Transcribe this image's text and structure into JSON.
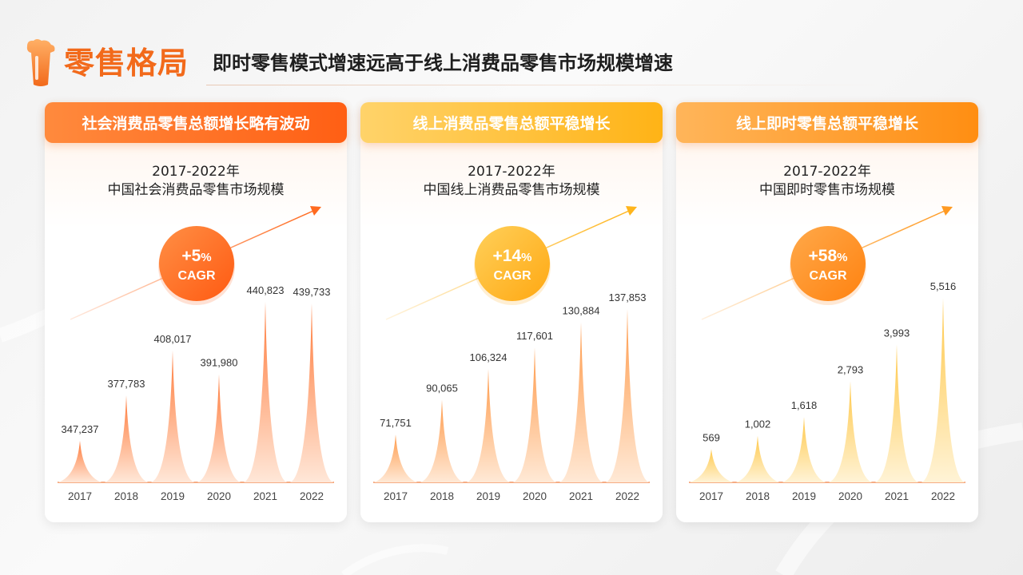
{
  "header": {
    "title": "零售格局",
    "subtitle": "即时零售模式增速远高于线上消费品零售市场规模增速"
  },
  "panels": [
    {
      "head": "社会消费品零售总额增长略有波动",
      "sub1": "2017-2022年",
      "sub2": "中国社会消费品零售市场规模",
      "cagr_value": "+5",
      "cagr_pct": "%",
      "cagr_label": "CAGR",
      "colors": {
        "head_from": "#ff8a3d",
        "head_to": "#ff5f14",
        "spike_top": "#ff7a3a",
        "spike_bottom": "#ffe7d8",
        "circle_from": "#ff8f45",
        "circle_to": "#ff5a12",
        "arrow": "#ff6a1f"
      }
    },
    {
      "head": "线上消费品零售总额平稳增长",
      "sub1": "2017-2022年",
      "sub2": "中国线上消费品零售市场规模",
      "cagr_value": "+14",
      "cagr_pct": "%",
      "cagr_label": "CAGR",
      "colors": {
        "head_from": "#ffd36a",
        "head_to": "#ffb316",
        "spike_top": "#ff9a4a",
        "spike_bottom": "#ffe9d6",
        "circle_from": "#ffd05a",
        "circle_to": "#ffa812",
        "arrow": "#ffb51c"
      }
    },
    {
      "head": "线上即时零售总额平稳增长",
      "sub1": "2017-2022年",
      "sub2": "中国即时零售市场规模",
      "cagr_value": "+58",
      "cagr_pct": "%",
      "cagr_label": "CAGR",
      "colors": {
        "head_from": "#ffb55a",
        "head_to": "#ff8e12",
        "spike_top": "#ffc84a",
        "spike_bottom": "#fff3d6",
        "circle_from": "#ffa94a",
        "circle_to": "#ff8210",
        "arrow": "#ff9a22"
      }
    }
  ],
  "chart_data": [
    {
      "type": "bar",
      "categories": [
        "2017",
        "2018",
        "2019",
        "2020",
        "2021",
        "2022"
      ],
      "values": [
        347237,
        377783,
        408017,
        391980,
        440823,
        439733
      ],
      "labels": [
        "347,237",
        "377,783",
        "408,017",
        "391,980",
        "440,823",
        "439,733"
      ],
      "title": "2017-2022年 中国社会消费品零售市场规模",
      "ylim": [
        330000,
        445000
      ]
    },
    {
      "type": "bar",
      "categories": [
        "2017",
        "2018",
        "2019",
        "2020",
        "2021",
        "2022"
      ],
      "values": [
        71751,
        90065,
        106324,
        117601,
        130884,
        137853
      ],
      "labels": [
        "71,751",
        "90,065",
        "106,324",
        "117,601",
        "130,884",
        "137,853"
      ],
      "title": "2017-2022年 中国线上消费品零售市场规模",
      "ylim": [
        55000,
        145000
      ]
    },
    {
      "type": "bar",
      "categories": [
        "2017",
        "2018",
        "2019",
        "2020",
        "2021",
        "2022"
      ],
      "values": [
        569,
        1002,
        1618,
        2793,
        3993,
        5516
      ],
      "labels": [
        "569",
        "1,002",
        "1,618",
        "2,793",
        "3,993",
        "5,516"
      ],
      "title": "2017-2022年 中国即时零售市场规模",
      "ylim": [
        0,
        5600
      ]
    }
  ]
}
